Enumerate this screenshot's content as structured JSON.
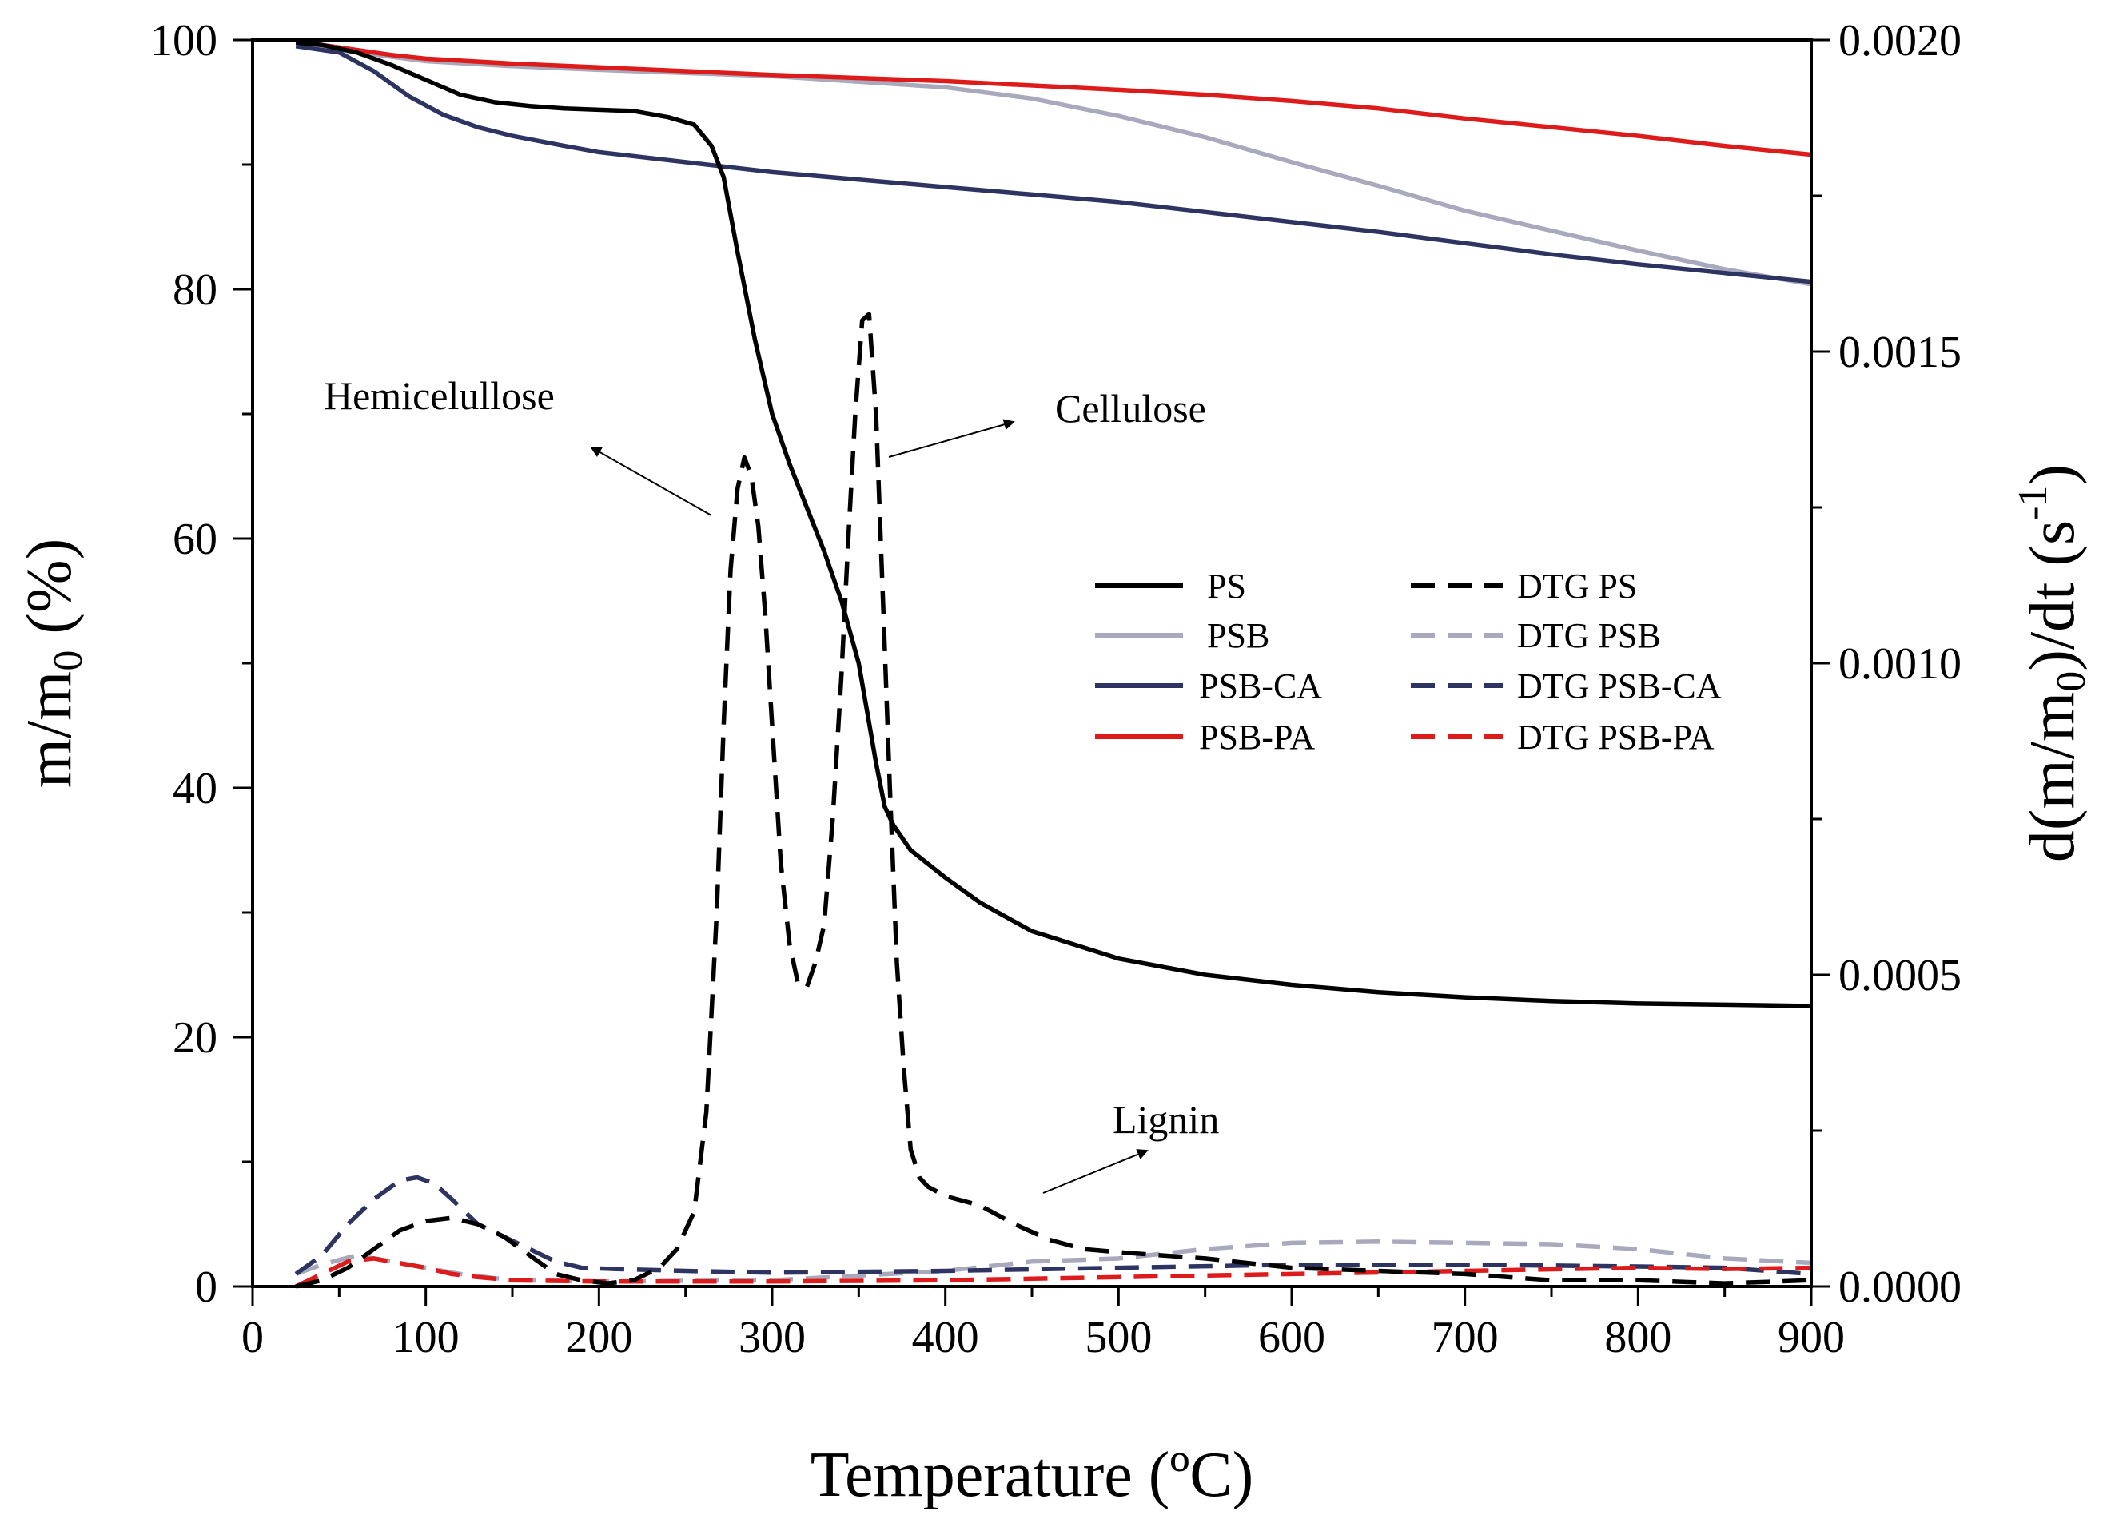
{
  "chart_data": {
    "type": "line",
    "title": "",
    "xlabel": "Temperature (ºC)",
    "ylabel": "m/m0 (%)",
    "y2label": "d(m/m0)/dt (s-1)",
    "xlim": [
      0,
      900
    ],
    "ylim": [
      0,
      100
    ],
    "y2lim": [
      0,
      0.002
    ],
    "x_ticks": [
      "0",
      "100",
      "200",
      "300",
      "400",
      "500",
      "600",
      "700",
      "800",
      "900"
    ],
    "y_ticks": [
      "0",
      "20",
      "40",
      "60",
      "80",
      "100"
    ],
    "y2_ticks": [
      "0.0000",
      "0.0005",
      "0.0010",
      "0.0015",
      "0.0020"
    ],
    "legend_position": "center-right",
    "series": [
      {
        "name": "PS",
        "axis": "left",
        "style": "solid",
        "color": "#000000",
        "x": [
          25,
          40,
          60,
          80,
          100,
          120,
          140,
          160,
          180,
          200,
          220,
          240,
          255,
          265,
          272,
          280,
          290,
          300,
          310,
          320,
          330,
          340,
          350,
          355,
          360,
          365,
          370,
          380,
          400,
          420,
          450,
          500,
          550,
          600,
          650,
          700,
          750,
          800,
          850,
          900
        ],
        "y": [
          99.8,
          99.6,
          99,
          98,
          96.8,
          95.6,
          95,
          94.7,
          94.5,
          94.4,
          94.3,
          93.8,
          93.2,
          91.5,
          89,
          83,
          76,
          70,
          66,
          62.5,
          59,
          55,
          50,
          46,
          42,
          38.5,
          37,
          35,
          32.8,
          30.8,
          28.5,
          26.3,
          25,
          24.2,
          23.6,
          23.2,
          22.9,
          22.7,
          22.6,
          22.5
        ]
      },
      {
        "name": "PSB",
        "axis": "left",
        "style": "solid",
        "color": "#a9a9bd",
        "x": [
          25,
          50,
          100,
          150,
          200,
          300,
          400,
          450,
          500,
          550,
          600,
          650,
          700,
          750,
          800,
          850,
          900
        ],
        "y": [
          99.7,
          99.2,
          98.3,
          97.9,
          97.6,
          97.1,
          96.2,
          95.3,
          93.9,
          92.2,
          90.2,
          88.3,
          86.3,
          84.7,
          83.1,
          81.6,
          80.4
        ]
      },
      {
        "name": "PSB-CA",
        "axis": "left",
        "style": "solid",
        "color": "#2e3461",
        "x": [
          25,
          50,
          70,
          90,
          110,
          130,
          150,
          180,
          200,
          250,
          300,
          350,
          400,
          450,
          500,
          550,
          600,
          650,
          700,
          750,
          800,
          850,
          900
        ],
        "y": [
          99.5,
          99,
          97.5,
          95.5,
          94,
          93,
          92.3,
          91.5,
          91,
          90.2,
          89.4,
          88.8,
          88.2,
          87.6,
          87,
          86.2,
          85.4,
          84.6,
          83.7,
          82.8,
          82,
          81.3,
          80.6
        ]
      },
      {
        "name": "PSB-PA",
        "axis": "left",
        "style": "solid",
        "color": "#dd1b1b",
        "x": [
          25,
          50,
          80,
          100,
          150,
          200,
          300,
          400,
          500,
          550,
          600,
          650,
          700,
          750,
          800,
          850,
          900
        ],
        "y": [
          99.9,
          99.4,
          98.8,
          98.5,
          98.1,
          97.8,
          97.2,
          96.7,
          96,
          95.6,
          95.1,
          94.5,
          93.7,
          93,
          92.3,
          91.5,
          90.8
        ]
      },
      {
        "name": "DTG PS",
        "axis": "right",
        "style": "dashed",
        "color": "#000000",
        "x": [
          25,
          40,
          55,
          70,
          85,
          100,
          115,
          130,
          145,
          160,
          175,
          190,
          205,
          220,
          235,
          245,
          255,
          262,
          268,
          272,
          276,
          280,
          284,
          288,
          292,
          296,
          300,
          305,
          310,
          315,
          320,
          325,
          330,
          335,
          340,
          344,
          348,
          352,
          356,
          360,
          364,
          368,
          372,
          376,
          380,
          385,
          390,
          400,
          420,
          440,
          460,
          480,
          500,
          550,
          600,
          650,
          700,
          750,
          800,
          850,
          900
        ],
        "y": [
          0.0,
          1e-05,
          3e-05,
          6e-05,
          9e-05,
          0.000105,
          0.00011,
          0.0001,
          8e-05,
          5e-05,
          2e-05,
          1e-05,
          5e-06,
          1e-05,
          3e-05,
          6e-05,
          0.00012,
          0.00028,
          0.0006,
          0.0009,
          0.00115,
          0.00128,
          0.00133,
          0.0013,
          0.00122,
          0.00108,
          0.0009,
          0.00068,
          0.00055,
          0.000485,
          0.00048,
          0.00052,
          0.00058,
          0.00075,
          0.00098,
          0.0012,
          0.0014,
          0.00155,
          0.00156,
          0.0014,
          0.0011,
          0.0008,
          0.00052,
          0.00035,
          0.00022,
          0.000175,
          0.00016,
          0.000145,
          0.00013,
          0.0001,
          7.5e-05,
          6e-05,
          5.5e-05,
          4.5e-05,
          3e-05,
          2.5e-05,
          2e-05,
          1e-05,
          1e-05,
          5e-06,
          1e-05
        ]
      },
      {
        "name": "DTG PSB",
        "axis": "right",
        "style": "dashed",
        "color": "#a9a9bd",
        "x": [
          25,
          40,
          60,
          80,
          100,
          120,
          150,
          200,
          300,
          400,
          450,
          500,
          550,
          600,
          650,
          700,
          750,
          800,
          850,
          900
        ],
        "y": [
          2e-05,
          3.5e-05,
          5e-05,
          4e-05,
          3e-05,
          2e-05,
          1e-05,
          8e-06,
          1e-05,
          2.5e-05,
          4e-05,
          4.5e-05,
          6e-05,
          7e-05,
          7.2e-05,
          7e-05,
          6.8e-05,
          6e-05,
          4.5e-05,
          3.8e-05
        ]
      },
      {
        "name": "DTG PSB-CA",
        "axis": "right",
        "style": "dashed",
        "color": "#2e3461",
        "x": [
          25,
          40,
          55,
          70,
          85,
          95,
          105,
          115,
          130,
          145,
          160,
          175,
          190,
          210,
          250,
          300,
          400,
          500,
          600,
          700,
          800,
          850,
          900
        ],
        "y": [
          2e-05,
          5e-05,
          0.0001,
          0.00014,
          0.00017,
          0.000175,
          0.000165,
          0.00014,
          0.0001,
          8e-05,
          6e-05,
          4e-05,
          3e-05,
          2.8e-05,
          2.5e-05,
          2.2e-05,
          2.5e-05,
          3e-05,
          3.5e-05,
          3.5e-05,
          3.2e-05,
          3e-05,
          2e-05
        ]
      },
      {
        "name": "DTG PSB-PA",
        "axis": "right",
        "style": "dashed",
        "color": "#dd1b1b",
        "x": [
          25,
          40,
          55,
          70,
          80,
          90,
          100,
          115,
          130,
          150,
          200,
          300,
          400,
          500,
          600,
          700,
          800,
          850,
          900
        ],
        "y": [
          0.0,
          2e-05,
          4e-05,
          4.5e-05,
          4e-05,
          3.5e-05,
          3e-05,
          2e-05,
          1.5e-05,
          1e-05,
          8e-06,
          8e-06,
          1e-05,
          1.5e-05,
          2e-05,
          2.5e-05,
          3e-05,
          2.8e-05,
          3e-05
        ]
      }
    ],
    "annotations": [
      "Hemicelullose",
      "Cellulose",
      "Lignin"
    ]
  }
}
